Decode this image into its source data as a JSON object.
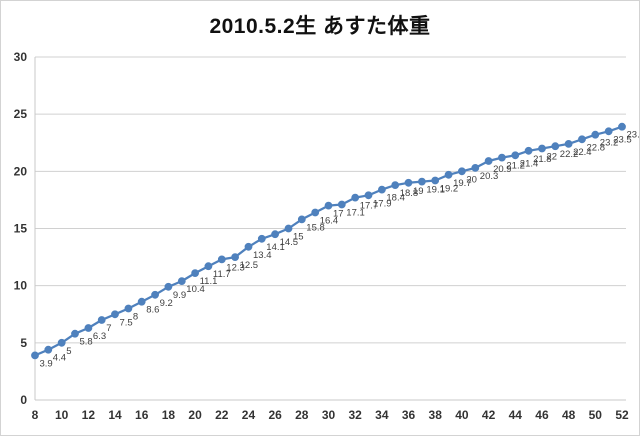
{
  "page": {
    "background_color": "#ffffff",
    "frame_border_color": "#d3d3d3"
  },
  "chart_data": {
    "type": "line",
    "title": "2010.5.2生 あすた体重",
    "xlabel": "",
    "ylabel": "",
    "x": [
      8,
      9,
      10,
      11,
      12,
      13,
      14,
      15,
      16,
      17,
      18,
      19,
      20,
      21,
      22,
      23,
      24,
      25,
      26,
      27,
      28,
      29,
      30,
      31,
      32,
      33,
      34,
      35,
      36,
      37,
      38,
      39,
      40,
      41,
      42,
      43,
      44,
      45,
      46,
      47,
      48,
      49,
      50,
      51,
      52
    ],
    "values": [
      3.9,
      4.4,
      5,
      5.8,
      6.3,
      7,
      7.5,
      8,
      8.6,
      9.2,
      9.9,
      10.4,
      11.1,
      11.7,
      12.3,
      12.5,
      13.4,
      14.1,
      14.5,
      15,
      15.8,
      16.4,
      17,
      17.1,
      17.7,
      17.9,
      18.4,
      18.8,
      19,
      19.1,
      19.2,
      19.7,
      20,
      20.3,
      20.9,
      21.2,
      21.4,
      21.8,
      22,
      22.2,
      22.4,
      22.8,
      23.2,
      23.5,
      23.9
    ],
    "xticks": [
      8,
      10,
      12,
      14,
      16,
      18,
      20,
      22,
      24,
      26,
      28,
      30,
      32,
      34,
      36,
      38,
      40,
      42,
      44,
      46,
      48,
      50,
      52
    ],
    "yticks": [
      0,
      5,
      10,
      15,
      20,
      25,
      30
    ],
    "xlim": [
      8,
      52
    ],
    "ylim": [
      0,
      30
    ],
    "grid": "horizontal",
    "legend_position": "none",
    "data_labels": true,
    "line_color": "#4f81bd",
    "marker_color": "#4f81bd",
    "marker_shape": "circle",
    "gridline_color": "#d0d0d0",
    "axis_line_color": "#c8c8c8",
    "tick_text_color": "#333333",
    "data_label_color": "#3f3f3f",
    "title_color": "#111111"
  }
}
